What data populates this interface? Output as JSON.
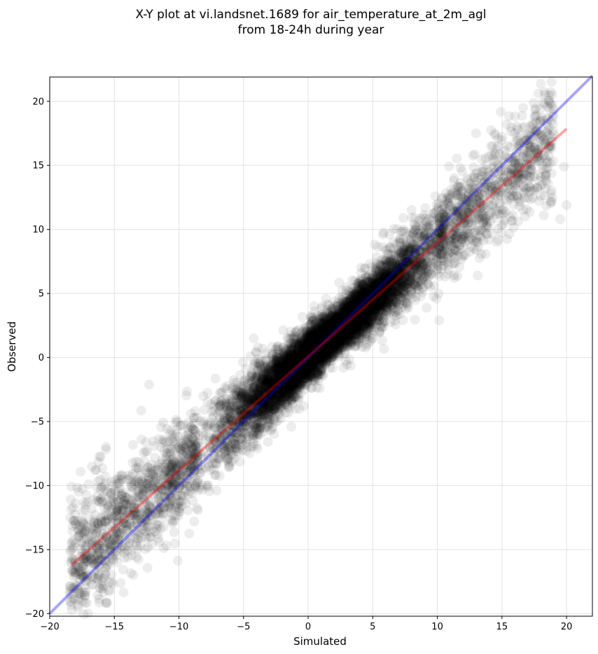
{
  "chart_data": {
    "type": "scatter",
    "title_lines": [
      "X-Y plot at vi.landsnet.1689 for air_temperature_at_2m_agl",
      "from 18-24h during year"
    ],
    "xlabel": "Simulated",
    "ylabel": "Observed",
    "xlim": [
      -20,
      22
    ],
    "ylim": [
      -20.2,
      21.9
    ],
    "xticks": [
      -20,
      -15,
      -10,
      -5,
      0,
      5,
      10,
      15,
      20
    ],
    "yticks": [
      -20,
      -15,
      -10,
      -5,
      0,
      5,
      10,
      15,
      20
    ],
    "tick_labels": [
      "−20",
      "−15",
      "−10",
      "−5",
      "0",
      "5",
      "10",
      "15",
      "20"
    ],
    "grid": true,
    "marker_color": "#000000",
    "marker_opacity": 0.07,
    "reference_lines": [
      {
        "kind": "one-to-one",
        "color": "#0000ff",
        "opacity": 0.35,
        "x": [
          -20,
          22
        ],
        "y": [
          -20,
          22
        ]
      },
      {
        "kind": "regression",
        "color": "#ff0000",
        "opacity": 0.35,
        "x": [
          -18.3,
          20
        ],
        "y": [
          -16.2,
          17.85
        ]
      }
    ],
    "points": {
      "count": 9000,
      "center_x": 1.5,
      "center_y": 1.5,
      "regression_slope": 0.89,
      "regression_intercept": 0.1,
      "x_range": [
        -18.5,
        20
      ],
      "notable_outliers": [
        [
          13,
          17.5
        ],
        [
          19.8,
          14.9
        ],
        [
          20,
          11.9
        ],
        [
          19.5,
          10.8
        ],
        [
          -18,
          -14.5
        ],
        [
          -17,
          -15.5
        ]
      ]
    }
  }
}
